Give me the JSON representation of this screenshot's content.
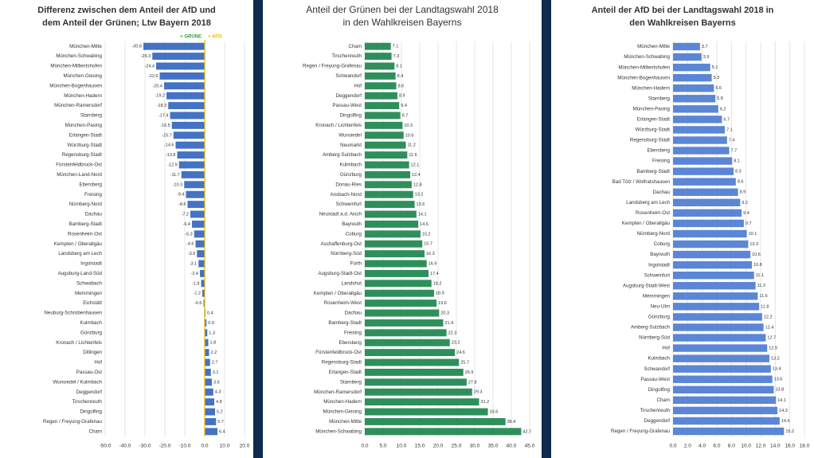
{
  "chart_data": [
    {
      "type": "bar",
      "orientation": "horizontal",
      "title": [
        "Differenz zwischen dem Anteil der AfD und",
        "dem Anteil der Grünen; Ltw Bayern 2018"
      ],
      "legend": [
        {
          "label": "+ GRÜNE",
          "color": "#2e9e3e"
        },
        {
          "label": "+ AFD",
          "color": "#e6b800"
        }
      ],
      "color": "#4472c4",
      "categories": [
        "München-Mitte",
        "München-Schwabing",
        "München-Milbertshofen",
        "München-Giesing",
        "München-Bogenhausen",
        "München-Hadern",
        "München-Ramersdorf",
        "Starnberg",
        "München-Pasing",
        "Erlangen-Stadt",
        "Würzburg-Stadt",
        "Regensburg-Stadt",
        "Fürstenfeldbruck-Ost",
        "München-Land-Nord",
        "Ebersberg",
        "Freising",
        "Nürnberg-Nord",
        "Dachau",
        "Bamberg-Stadt",
        "Rosenheim-Ost",
        "Kempten / Oberallgäu",
        "Landsberg am Lech",
        "Ingolstadt",
        "Augsburg-Land-Süd",
        "Schwabach",
        "Memmingen",
        "Eichstätt",
        "Neuburg-Schrobenhausen",
        "Kulmbach",
        "Günzburg",
        "Kronach / Lichtenfels",
        "Dillingen",
        "Hof",
        "Passau-Ost",
        "Wunsiedel / Kulmbach",
        "Deggendorf",
        "Tirschenreuth",
        "Dingolfing",
        "Regen / Freyung-Grafenau",
        "Cham"
      ],
      "values": [
        -30.8,
        -26.3,
        -24.4,
        -22.6,
        -20.4,
        -19.2,
        -18.3,
        -17.4,
        -16.5,
        -15.7,
        -14.6,
        -13.8,
        -12.9,
        -11.7,
        -10.3,
        -9.4,
        -8.6,
        -7.2,
        -6.4,
        -5.3,
        -4.6,
        -3.9,
        -3.1,
        -2.4,
        -1.8,
        -1.2,
        -0.6,
        0.4,
        0.9,
        1.3,
        1.8,
        2.2,
        2.7,
        3.1,
        3.6,
        4.3,
        4.8,
        5.2,
        5.7,
        6.4
      ],
      "xlim": [
        -50,
        20
      ],
      "xticks": [
        {
          "value": -50,
          "label": "-50.0"
        },
        {
          "value": -40,
          "label": "-40.0"
        },
        {
          "value": -30,
          "label": "-30.0"
        },
        {
          "value": -20,
          "label": "-20.0"
        },
        {
          "value": -10,
          "label": "-10.0"
        },
        {
          "value": 0,
          "label": "0.0"
        },
        {
          "value": 10,
          "label": "10.0"
        },
        {
          "value": 20,
          "label": "20.0"
        }
      ]
    },
    {
      "type": "bar",
      "orientation": "horizontal",
      "title": [
        "Anteil der Grünen bei der Landtagswahl 2018",
        "in den Wahlkreisen Bayerns"
      ],
      "color": "#2f8f5b",
      "categories": [
        "Cham",
        "Tirschenreuth",
        "Regen / Freyung-Grafenau",
        "Schwandorf",
        "Hof",
        "Deggendorf",
        "Passau-West",
        "Dingolfing",
        "Kronach / Lichtenfels",
        "Wunsiedel",
        "Neumarkt",
        "Amberg-Sulzbach",
        "Kulmbach",
        "Günzburg",
        "Donau-Ries",
        "Ansbach-Nord",
        "Schweinfurt",
        "Neustadt a.d. Aisch",
        "Bayreuth",
        "Coburg",
        "Aschaffenburg-Ost",
        "Nürnberg-Süd",
        "Fürth",
        "Augsburg-Stadt-Ost",
        "Landshut",
        "Kempten / Oberallgäu",
        "Rosenheim-West",
        "Dachau",
        "Bamberg-Stadt",
        "Freising",
        "Ebersberg",
        "Fürstenfeldbruck-Ost",
        "Regensburg-Stadt",
        "Erlangen-Stadt",
        "Starnberg",
        "München-Ramersdorf",
        "München-Hadern",
        "München-Giesing",
        "München-Mitte",
        "München-Schwabing"
      ],
      "values": [
        7.1,
        7.3,
        8.1,
        8.4,
        8.6,
        8.9,
        9.4,
        9.7,
        10.3,
        10.6,
        11.2,
        11.6,
        12.1,
        12.4,
        12.8,
        13.2,
        13.6,
        14.1,
        14.6,
        15.2,
        15.7,
        16.3,
        16.9,
        17.4,
        18.2,
        18.9,
        19.6,
        20.3,
        21.4,
        22.3,
        23.2,
        24.6,
        25.7,
        26.9,
        27.8,
        29.3,
        31.2,
        33.6,
        38.4,
        42.7
      ],
      "xlim": [
        0,
        45
      ],
      "xticks": [
        {
          "value": 0,
          "label": "0.0"
        },
        {
          "value": 5,
          "label": "5.0"
        },
        {
          "value": 10,
          "label": "10.0"
        },
        {
          "value": 15,
          "label": "15.0"
        },
        {
          "value": 20,
          "label": "20.0"
        },
        {
          "value": 25,
          "label": "25.0"
        },
        {
          "value": 30,
          "label": "30.0"
        },
        {
          "value": 35,
          "label": "35.0"
        },
        {
          "value": 40,
          "label": "40.0"
        },
        {
          "value": 45,
          "label": "45.0"
        }
      ]
    },
    {
      "type": "bar",
      "orientation": "horizontal",
      "title": [
        "Anteil der AfD bei der Landtagswahl 2018 in",
        "den Wahlkreisen Bayerns"
      ],
      "color": "#5b86d6",
      "categories": [
        "München-Mitte",
        "München-Schwabing",
        "München-Milbertshofen",
        "München-Bogenhausen",
        "München-Hadern",
        "Starnberg",
        "München-Pasing",
        "Erlangen-Stadt",
        "Würzburg-Stadt",
        "Regensburg-Stadt",
        "Ebersberg",
        "Freising",
        "Bamberg-Stadt",
        "Bad Tölz / Wolfratshausen",
        "Dachau",
        "Landsberg am Lech",
        "Rosenheim-Ost",
        "Kempten / Oberallgäu",
        "Nürnberg-Nord",
        "Coburg",
        "Bayreuth",
        "Ingolstadt",
        "Schweinfurt",
        "Augsburg-Stadt-West",
        "Memmingen",
        "Neu-Ulm",
        "Günzburg",
        "Amberg-Sulzbach",
        "Nürnberg-Süd",
        "Hof",
        "Kulmbach",
        "Schwandorf",
        "Passau-West",
        "Dingolfing",
        "Cham",
        "Tirschenreuth",
        "Deggendorf",
        "Regen / Freyung-Grafenau"
      ],
      "values": [
        3.7,
        3.9,
        5.1,
        5.3,
        5.6,
        5.8,
        6.2,
        6.7,
        7.1,
        7.4,
        7.7,
        8.1,
        8.3,
        8.6,
        8.9,
        9.2,
        9.4,
        9.7,
        10.1,
        10.3,
        10.6,
        10.8,
        11.1,
        11.3,
        11.6,
        11.8,
        12.2,
        12.4,
        12.7,
        12.9,
        13.2,
        13.4,
        13.6,
        13.8,
        14.1,
        14.3,
        14.6,
        15.2
      ],
      "xlim": [
        0,
        18
      ],
      "xticks": [
        {
          "value": 0,
          "label": "0.0"
        },
        {
          "value": 2,
          "label": "2.0"
        },
        {
          "value": 4,
          "label": "4.0"
        },
        {
          "value": 6,
          "label": "6.0"
        },
        {
          "value": 8,
          "label": "8.0"
        },
        {
          "value": 10,
          "label": "10.0"
        },
        {
          "value": 12,
          "label": "12.0"
        },
        {
          "value": 14,
          "label": "14.0"
        },
        {
          "value": 16,
          "label": "16.0"
        },
        {
          "value": 18,
          "label": "18.0"
        }
      ]
    }
  ]
}
